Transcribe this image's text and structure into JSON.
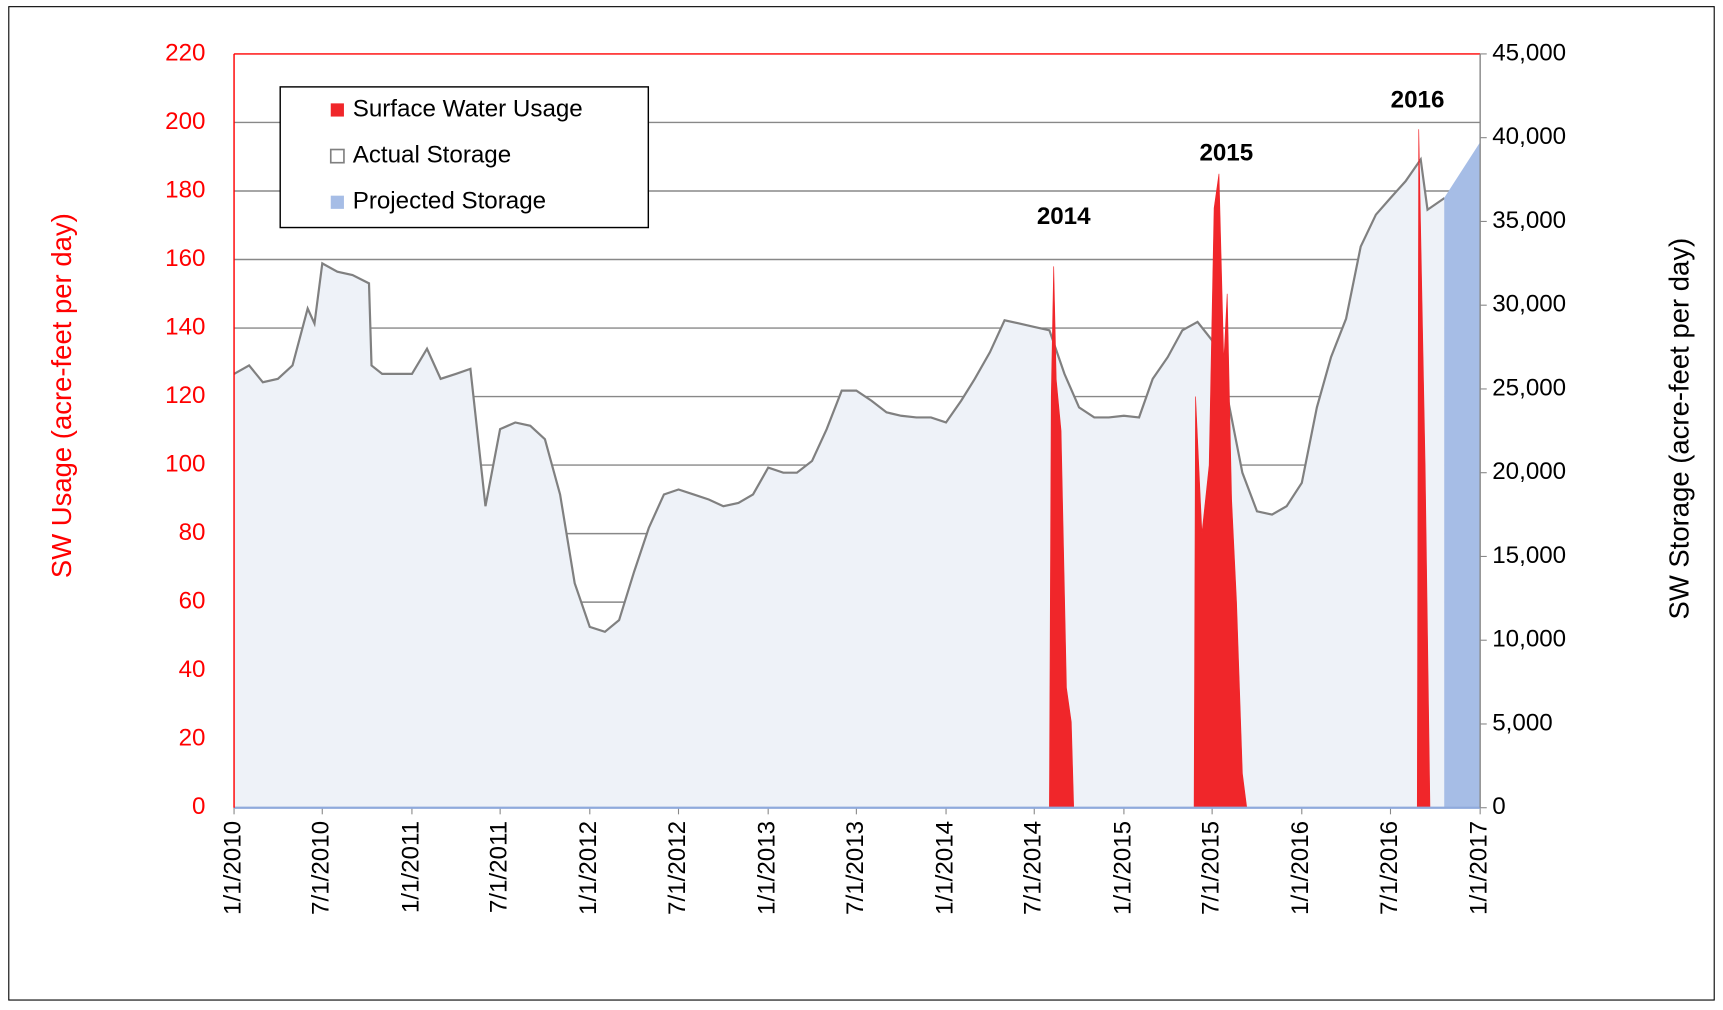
{
  "chart_data": {
    "type": "area",
    "y_label": "SW Usage (acre-feet per day)",
    "y2_label": "SW Storage (acre-feet per day)",
    "xlim": [
      "2010-01-01",
      "2017-01-01"
    ],
    "xticks": [
      {
        "value": "2010-01-01",
        "label": "1/1/2010"
      },
      {
        "value": "2010-07-01",
        "label": "7/1/2010"
      },
      {
        "value": "2011-01-01",
        "label": "1/1/2011"
      },
      {
        "value": "2011-07-01",
        "label": "7/1/2011"
      },
      {
        "value": "2012-01-01",
        "label": "1/1/2012"
      },
      {
        "value": "2012-07-01",
        "label": "7/1/2012"
      },
      {
        "value": "2013-01-01",
        "label": "1/1/2013"
      },
      {
        "value": "2013-07-01",
        "label": "7/1/2013"
      },
      {
        "value": "2014-01-01",
        "label": "1/1/2014"
      },
      {
        "value": "2014-07-01",
        "label": "7/1/2014"
      },
      {
        "value": "2015-01-01",
        "label": "1/1/2015"
      },
      {
        "value": "2015-07-01",
        "label": "7/1/2015"
      },
      {
        "value": "2016-01-01",
        "label": "1/1/2016"
      },
      {
        "value": "2016-07-01",
        "label": "7/1/2016"
      },
      {
        "value": "2017-01-01",
        "label": "1/1/2017"
      }
    ],
    "ylim": [
      0,
      220
    ],
    "yticks": [
      0,
      20,
      40,
      60,
      80,
      100,
      120,
      140,
      160,
      180,
      200,
      220
    ],
    "y2lim": [
      0,
      45000
    ],
    "y2ticks": [
      0,
      {
        "value": 5000,
        "label": "5,000"
      },
      {
        "value": 10000,
        "label": "10,000"
      },
      {
        "value": 15000,
        "label": "15,000"
      },
      {
        "value": 20000,
        "label": "20,000"
      },
      {
        "value": 25000,
        "label": "25,000"
      },
      {
        "value": 30000,
        "label": "30,000"
      },
      {
        "value": 35000,
        "label": "35,000"
      },
      {
        "value": 40000,
        "label": "40,000"
      },
      {
        "value": 45000,
        "label": "45,000"
      }
    ],
    "grid": true,
    "legend": "upper left",
    "annotations": [
      "2014",
      "2015",
      "2016"
    ],
    "series": [
      {
        "name": "Surface Water Usage",
        "color": "#f0262a",
        "axis": "y",
        "x": [
          "2014-08-01",
          "2014-08-05",
          "2014-08-10",
          "2014-08-15",
          "2014-08-25",
          "2014-09-05",
          "2014-09-15",
          "2014-09-20",
          "2015-05-25",
          "2015-05-28",
          "2015-06-10",
          "2015-06-25",
          "2015-07-05",
          "2015-07-15",
          "2015-07-25",
          "2015-08-01",
          "2015-08-10",
          "2015-08-20",
          "2015-09-01",
          "2015-09-10",
          "2016-08-25",
          "2016-08-28",
          "2016-09-10",
          "2016-09-20"
        ],
        "values": [
          0,
          120,
          158,
          125,
          110,
          35,
          25,
          0,
          0,
          120,
          80,
          100,
          175,
          185,
          130,
          150,
          90,
          60,
          10,
          0,
          0,
          198,
          100,
          0
        ]
      },
      {
        "name": "Actual Storage",
        "color": "#808080",
        "fill": "#eef2f8",
        "axis": "y2",
        "x": [
          "2010-01-01",
          "2010-02-01",
          "2010-03-01",
          "2010-04-01",
          "2010-05-01",
          "2010-06-01",
          "2010-06-15",
          "2010-07-01",
          "2010-08-01",
          "2010-09-01",
          "2010-10-05",
          "2010-10-10",
          "2010-11-01",
          "2011-01-01",
          "2011-02-01",
          "2011-03-01",
          "2011-04-01",
          "2011-05-01",
          "2011-06-01",
          "2011-07-01",
          "2011-08-01",
          "2011-09-01",
          "2011-10-01",
          "2011-11-01",
          "2011-12-01",
          "2012-01-01",
          "2012-02-01",
          "2012-03-01",
          "2012-04-01",
          "2012-05-01",
          "2012-06-01",
          "2012-07-01",
          "2012-08-01",
          "2012-09-01",
          "2012-10-01",
          "2012-11-01",
          "2012-12-01",
          "2013-01-01",
          "2013-02-01",
          "2013-03-01",
          "2013-04-01",
          "2013-05-01",
          "2013-06-01",
          "2013-07-01",
          "2013-08-01",
          "2013-09-01",
          "2013-10-01",
          "2013-11-01",
          "2013-12-01",
          "2014-01-01",
          "2014-02-01",
          "2014-03-01",
          "2014-04-01",
          "2014-05-01",
          "2014-06-01",
          "2014-07-01",
          "2014-08-01",
          "2014-09-01",
          "2014-10-01",
          "2014-11-01",
          "2014-12-01",
          "2015-01-01",
          "2015-02-01",
          "2015-03-01",
          "2015-04-01",
          "2015-05-01",
          "2015-06-01",
          "2015-07-01",
          "2015-08-01",
          "2015-09-01",
          "2015-10-01",
          "2015-11-01",
          "2015-12-01",
          "2016-01-01",
          "2016-02-01",
          "2016-03-01",
          "2016-04-01",
          "2016-05-01",
          "2016-06-01",
          "2016-07-01",
          "2016-08-01",
          "2016-09-01",
          "2016-09-15",
          "2016-10-20"
        ],
        "values": [
          25900,
          26400,
          25400,
          25600,
          26400,
          29800,
          28900,
          32500,
          32000,
          31800,
          31300,
          26400,
          25900,
          25900,
          27400,
          25600,
          25900,
          26200,
          18000,
          22600,
          23000,
          22800,
          22000,
          18700,
          13400,
          10800,
          10500,
          11200,
          14100,
          16700,
          18700,
          19000,
          18700,
          18400,
          18000,
          18200,
          18700,
          20300,
          20000,
          20000,
          20700,
          22600,
          24900,
          24900,
          24300,
          23600,
          23400,
          23300,
          23300,
          23000,
          24300,
          25600,
          27200,
          29100,
          28900,
          28700,
          28500,
          25900,
          23900,
          23300,
          23300,
          23400,
          23300,
          25600,
          26900,
          28500,
          29000,
          27900,
          24600,
          20000,
          17700,
          17500,
          18000,
          19400,
          23900,
          26900,
          29200,
          33500,
          35400,
          36400,
          37400,
          38700,
          35700,
          36400
        ]
      },
      {
        "name": "Projected Storage",
        "color": "#a6bde6",
        "axis": "y2",
        "x": [
          "2016-10-20",
          "2017-01-01"
        ],
        "values": [
          36400,
          39700
        ]
      }
    ]
  }
}
